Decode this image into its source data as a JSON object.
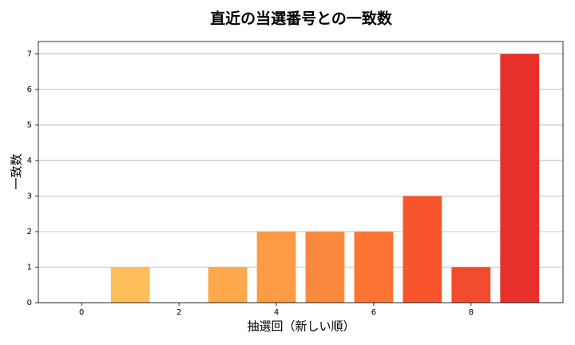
{
  "chart_data": {
    "type": "bar",
    "title": "直近の当選番号との一致数",
    "x_label": "抽選回（新しい順）",
    "y_label": "一致数",
    "x": [
      0,
      1,
      2,
      3,
      4,
      5,
      6,
      7,
      8,
      9
    ],
    "values": [
      0,
      1,
      0,
      1,
      2,
      2,
      2,
      3,
      1,
      7
    ],
    "colors": [
      "#ffd27e",
      "#febe5a",
      "#feb050",
      "#fda84a",
      "#fd9a44",
      "#fc8a3e",
      "#fc7535",
      "#f8552f",
      "#f24a2c",
      "#e8302a"
    ],
    "xlim": [
      -0.89,
      9.89
    ],
    "xticks": [
      0,
      2,
      4,
      6,
      8
    ],
    "ylim": [
      0,
      7.35
    ],
    "yticks": [
      0,
      1,
      2,
      3,
      4,
      5,
      6,
      7
    ],
    "grid": true
  }
}
